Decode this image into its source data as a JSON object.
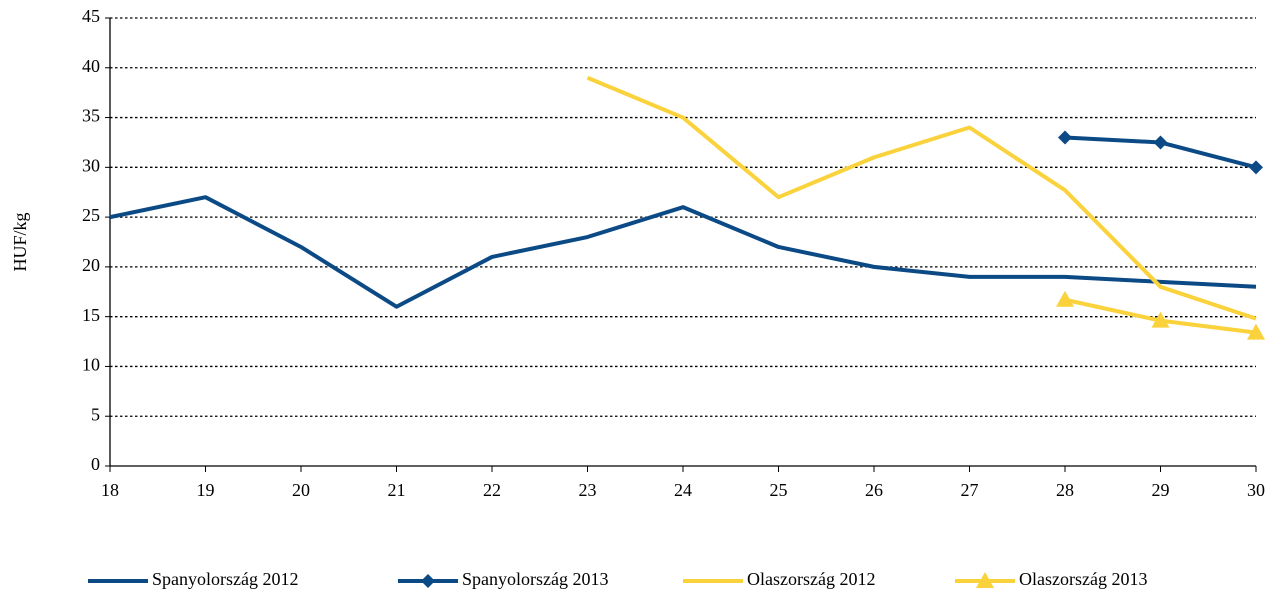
{
  "chart_data": {
    "type": "line",
    "y_label": "HUF/kg",
    "x": [
      18,
      19,
      20,
      21,
      22,
      23,
      24,
      25,
      26,
      27,
      28,
      29,
      30
    ],
    "xlim": [
      18,
      30
    ],
    "xticks": [
      18,
      19,
      20,
      21,
      22,
      23,
      24,
      25,
      26,
      27,
      28,
      29,
      30
    ],
    "ylim": [
      0,
      45
    ],
    "yticks": [
      0,
      5,
      10,
      15,
      20,
      25,
      30,
      35,
      40,
      45
    ],
    "grid": true,
    "legend": "bottom",
    "series": [
      {
        "name": "Spanyolország 2012",
        "color": "#0c4a86",
        "marker": "none",
        "values": [
          25,
          27,
          22,
          16,
          21,
          23,
          26,
          22,
          20,
          19,
          19,
          18.5,
          18
        ]
      },
      {
        "name": "Spanyolország 2013",
        "color": "#0c4a86",
        "marker": "diamond",
        "values": [
          null,
          null,
          null,
          null,
          null,
          null,
          null,
          null,
          null,
          null,
          33,
          32.5,
          30
        ]
      },
      {
        "name": "Olaszország 2012",
        "color": "#fad23c",
        "marker": "none",
        "values": [
          null,
          null,
          null,
          null,
          null,
          39,
          35,
          27,
          31,
          34,
          27.7,
          18,
          14.8
        ]
      },
      {
        "name": "Olaszország 2013",
        "color": "#fad23c",
        "marker": "triangle",
        "values": [
          null,
          null,
          null,
          null,
          null,
          null,
          null,
          null,
          null,
          null,
          16.7,
          14.6,
          13.4
        ]
      }
    ]
  }
}
